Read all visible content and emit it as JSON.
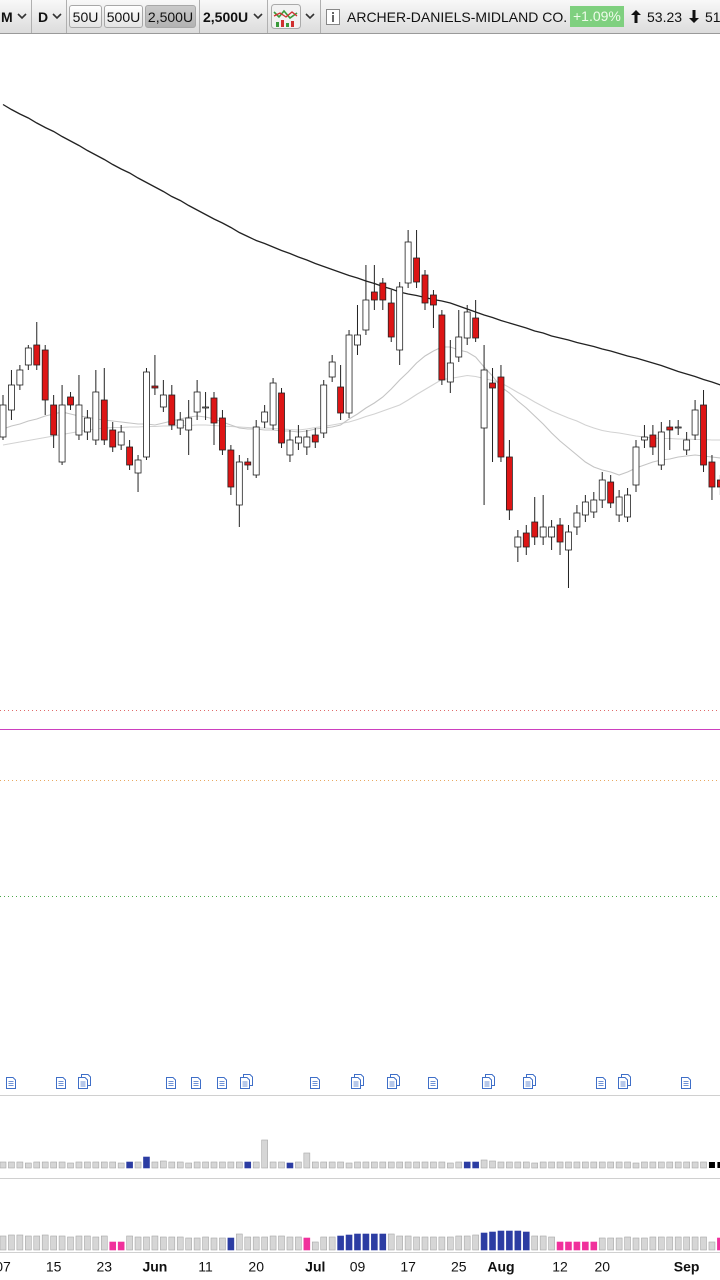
{
  "header": {
    "interval": "M",
    "period": "D",
    "units_buttons": [
      "50U",
      "500U",
      "2,500U"
    ],
    "selected_button": 2,
    "units": "2,500U",
    "title": "ARCHER-DANIELS-MIDLAND CO.",
    "change": "+1.09%",
    "high": "53.23",
    "low": "51"
  },
  "chart_data": [
    {
      "type": "candlestick",
      "categories": [
        "07",
        null,
        null,
        null,
        null,
        null,
        "15",
        null,
        null,
        null,
        null,
        null,
        "23",
        null,
        null,
        null,
        null,
        null,
        "Jun",
        null,
        null,
        null,
        null,
        null,
        "11",
        null,
        null,
        null,
        null,
        null,
        "20",
        null,
        null,
        null,
        null,
        null,
        null,
        "Jul",
        null,
        null,
        null,
        null,
        "09",
        null,
        null,
        null,
        null,
        null,
        "17",
        null,
        null,
        null,
        null,
        null,
        "25",
        null,
        null,
        null,
        null,
        "Aug",
        null,
        null,
        null,
        null,
        null,
        null,
        "12",
        null,
        null,
        null,
        null,
        "20",
        null,
        null,
        null,
        null,
        null,
        null,
        null,
        null,
        null,
        "Sep",
        null,
        null,
        null,
        null
      ],
      "open": [
        51.26,
        51.8,
        52.3,
        52.7,
        53.1,
        53.0,
        51.9,
        50.76,
        52.06,
        51.3,
        51.36,
        51.2,
        52.0,
        51.4,
        51.1,
        51.06,
        50.54,
        50.86,
        52.28,
        51.86,
        52.1,
        51.44,
        51.4,
        51.76,
        51.84,
        52.04,
        51.64,
        51.0,
        49.9,
        50.76,
        50.5,
        51.56,
        51.5,
        52.14,
        50.9,
        51.14,
        51.06,
        51.3,
        51.34,
        52.46,
        52.26,
        51.74,
        53.1,
        53.4,
        54.16,
        54.34,
        53.94,
        53.0,
        54.34,
        54.84,
        54.5,
        54.1,
        53.7,
        52.36,
        52.86,
        53.24,
        53.64,
        51.44,
        52.34,
        52.46,
        50.86,
        49.06,
        49.34,
        49.56,
        49.26,
        49.26,
        49.5,
        49.0,
        49.46,
        49.7,
        49.76,
        50.0,
        50.36,
        49.7,
        49.66,
        50.3,
        51.2,
        51.3,
        50.7,
        51.46,
        51.44,
        51.0,
        51.3,
        51.9,
        50.76,
        50.4
      ],
      "high": [
        52.1,
        52.6,
        52.7,
        53.1,
        53.56,
        53.1,
        52.1,
        52.3,
        52.16,
        52.5,
        51.8,
        52.6,
        52.64,
        51.56,
        51.5,
        51.2,
        50.9,
        52.64,
        52.9,
        52.4,
        52.3,
        51.76,
        52.0,
        52.4,
        52.16,
        52.16,
        51.8,
        51.1,
        50.9,
        50.84,
        51.6,
        51.9,
        52.44,
        52.24,
        51.4,
        51.5,
        51.4,
        51.44,
        52.4,
        52.9,
        52.7,
        53.4,
        53.9,
        54.7,
        54.7,
        54.44,
        54.2,
        54.36,
        55.4,
        55.4,
        54.6,
        54.2,
        53.8,
        53.2,
        53.8,
        53.9,
        54.0,
        53.1,
        52.64,
        52.7,
        51.2,
        49.4,
        49.5,
        50.06,
        50.1,
        49.6,
        49.64,
        49.5,
        49.9,
        50.1,
        50.16,
        50.56,
        50.5,
        50.2,
        50.24,
        51.2,
        51.5,
        51.5,
        51.56,
        51.6,
        51.6,
        51.36,
        52.0,
        52.2,
        50.9,
        50.5
      ],
      "low": [
        51.2,
        51.6,
        52.2,
        52.6,
        52.6,
        51.7,
        51.04,
        50.7,
        51.8,
        51.2,
        51.2,
        51.1,
        51.1,
        50.96,
        51.0,
        50.6,
        50.16,
        50.8,
        52.1,
        51.76,
        51.4,
        51.3,
        50.9,
        51.6,
        51.6,
        51.1,
        50.9,
        50.1,
        49.46,
        50.6,
        50.44,
        51.44,
        51.4,
        51.04,
        50.76,
        51.0,
        50.9,
        51.04,
        51.24,
        52.36,
        51.6,
        51.64,
        52.9,
        53.3,
        53.8,
        53.8,
        53.16,
        52.7,
        54.24,
        54.24,
        53.8,
        53.44,
        52.3,
        52.14,
        52.76,
        53.1,
        53.16,
        49.9,
        50.76,
        50.76,
        49.6,
        48.76,
        48.9,
        49.1,
        49.1,
        49.0,
        48.9,
        48.24,
        49.3,
        49.56,
        49.64,
        49.84,
        49.84,
        49.56,
        49.56,
        50.16,
        51.04,
        50.9,
        50.6,
        51.0,
        51.3,
        50.9,
        51.2,
        50.56,
        50.0,
        50.1
      ],
      "close": [
        51.9,
        52.3,
        52.6,
        53.04,
        52.7,
        52.0,
        51.3,
        51.9,
        51.9,
        51.9,
        51.64,
        52.16,
        51.2,
        51.06,
        51.36,
        50.7,
        50.8,
        52.56,
        52.24,
        52.1,
        51.5,
        51.6,
        51.64,
        52.16,
        51.86,
        51.54,
        51.0,
        50.26,
        50.76,
        50.7,
        51.46,
        51.76,
        52.34,
        51.14,
        51.2,
        51.26,
        51.26,
        51.16,
        52.3,
        52.76,
        51.74,
        53.3,
        53.3,
        54.0,
        54.0,
        54.0,
        53.26,
        54.26,
        55.16,
        54.36,
        53.94,
        53.9,
        52.4,
        52.74,
        53.26,
        53.76,
        53.24,
        52.6,
        52.24,
        50.86,
        49.8,
        49.26,
        49.06,
        49.26,
        49.46,
        49.46,
        49.16,
        49.36,
        49.74,
        49.96,
        50.0,
        50.4,
        49.94,
        50.06,
        50.1,
        51.06,
        51.26,
        51.06,
        51.36,
        51.4,
        51.46,
        51.2,
        51.8,
        50.7,
        50.26,
        50.26
      ],
      "up_color": "#ffffff",
      "down_color": "#dd1515",
      "ylim": [
        38.6,
        60
      ],
      "lines": [
        {
          "color": "#222222",
          "values": [
            57.91,
            57.81,
            57.72,
            57.64,
            57.54,
            57.45,
            57.37,
            57.27,
            57.18,
            57.09,
            56.99,
            56.9,
            56.81,
            56.71,
            56.62,
            56.54,
            56.44,
            56.35,
            56.26,
            56.17,
            56.07,
            55.99,
            55.89,
            55.8,
            55.71,
            55.62,
            55.54,
            55.45,
            55.35,
            55.27,
            55.19,
            55.13,
            55.06,
            54.99,
            54.93,
            54.86,
            54.8,
            54.73,
            54.67,
            54.61,
            54.55,
            54.49,
            54.44,
            54.38,
            54.33,
            54.27,
            54.22,
            54.16,
            54.12,
            54.09,
            54.05,
            54.01,
            53.98,
            53.94,
            53.88,
            53.82,
            53.76,
            53.7,
            53.65,
            53.59,
            53.54,
            53.49,
            53.44,
            53.38,
            53.34,
            53.28,
            53.24,
            53.2,
            53.15,
            53.11,
            53.07,
            53.02,
            52.98,
            52.93,
            52.88,
            52.84,
            52.79,
            52.74,
            52.69,
            52.63,
            52.57,
            52.52,
            52.47,
            52.41,
            52.36,
            52.3
          ]
        },
        {
          "color": "#c4c4c4",
          "values": [
            51.42,
            51.48,
            51.52,
            51.58,
            51.62,
            51.68,
            51.72,
            51.76,
            51.72,
            51.68,
            51.66,
            51.62,
            51.6,
            51.58,
            51.56,
            51.54,
            51.52,
            51.52,
            51.5,
            51.54,
            51.58,
            51.62,
            51.66,
            51.68,
            51.66,
            51.62,
            51.56,
            51.5,
            51.44,
            51.42,
            51.42,
            51.4,
            51.4,
            51.38,
            51.38,
            51.36,
            51.38,
            51.42,
            51.44,
            51.46,
            51.5,
            51.62,
            51.72,
            51.84,
            51.94,
            52.06,
            52.22,
            52.4,
            52.56,
            52.74,
            52.88,
            52.98,
            53.06,
            53.06,
            53.0,
            52.96,
            52.86,
            52.66,
            52.48,
            52.26,
            52.14,
            51.98,
            51.84,
            51.68,
            51.52,
            51.34,
            51.18,
            51.04,
            50.9,
            50.76,
            50.66,
            50.6,
            50.56,
            50.5,
            50.56,
            50.64,
            50.7,
            50.76,
            50.8,
            50.82,
            50.86,
            50.88,
            50.9,
            50.88,
            50.86,
            50.84
          ]
        },
        {
          "color": "#d2d2d2",
          "values": [
            51.1,
            51.13,
            51.16,
            51.19,
            51.22,
            51.25,
            51.28,
            51.31,
            51.34,
            51.37,
            51.4,
            51.42,
            51.44,
            51.45,
            51.45,
            51.46,
            51.46,
            51.47,
            51.47,
            51.48,
            51.48,
            51.49,
            51.49,
            51.5,
            51.5,
            51.49,
            51.48,
            51.47,
            51.46,
            51.45,
            51.44,
            51.44,
            51.43,
            51.42,
            51.41,
            51.4,
            51.42,
            51.45,
            51.47,
            51.5,
            51.53,
            51.56,
            51.61,
            51.67,
            51.72,
            51.78,
            51.84,
            51.9,
            52.0,
            52.11,
            52.21,
            52.31,
            52.41,
            52.43,
            52.46,
            52.49,
            52.47,
            52.43,
            52.39,
            52.34,
            52.25,
            52.15,
            52.06,
            51.96,
            51.87,
            51.78,
            51.71,
            51.64,
            51.58,
            51.5,
            51.44,
            51.39,
            51.36,
            51.34,
            51.31,
            51.28,
            51.26,
            51.24,
            51.23,
            51.23,
            51.22,
            51.22,
            51.21,
            51.21,
            51.2,
            51.2
          ]
        }
      ],
      "levels": [
        {
          "value": 45.8,
          "color": "#e06a6a",
          "dash": "dotted"
        },
        {
          "value": 45.42,
          "color": "#cc3fbf",
          "dash": "solid"
        },
        {
          "value": 44.4,
          "color": "#e8a860",
          "dash": "dotted"
        },
        {
          "value": 42.08,
          "color": "#4aa84a",
          "dash": "dotted"
        }
      ]
    },
    {
      "type": "bar",
      "ylim": [
        0,
        72
      ],
      "values": [
        6,
        6,
        6,
        5,
        6,
        6,
        6,
        6,
        5,
        6,
        6,
        6,
        6,
        6,
        5,
        6,
        6,
        11,
        6,
        7,
        6,
        6,
        5,
        6,
        6,
        6,
        6,
        6,
        6,
        6,
        6,
        28,
        6,
        6,
        5,
        6,
        15,
        6,
        6,
        6,
        6,
        5,
        6,
        6,
        6,
        6,
        6,
        6,
        6,
        6,
        6,
        6,
        6,
        5,
        6,
        6,
        6,
        8,
        7,
        6,
        6,
        6,
        6,
        5,
        6,
        6,
        6,
        6,
        6,
        6,
        6,
        6,
        6,
        6,
        6,
        5,
        6,
        6,
        6,
        6,
        6,
        6,
        6,
        6,
        6,
        6
      ],
      "bar_colors": "gggggggggggggggbgbgggggggggggbggggbggggggggggggggggggggbbggggggggggggggggggggggggggg",
      "palette": {
        "g": "#d6d6d6",
        "b": "#2c3da3",
        "m": "#f0309c"
      }
    },
    {
      "type": "bar",
      "ylim": [
        0,
        70
      ],
      "values": [
        14,
        15,
        15,
        14,
        14,
        15,
        14,
        14,
        13,
        14,
        14,
        13,
        14,
        8,
        8,
        14,
        13,
        13,
        14,
        13,
        13,
        13,
        12,
        12,
        13,
        12,
        12,
        12,
        16,
        13,
        13,
        13,
        14,
        14,
        13,
        13,
        12,
        8,
        13,
        13,
        14,
        15,
        16,
        16,
        16,
        16,
        16,
        14,
        14,
        13,
        13,
        13,
        13,
        13,
        14,
        14,
        15,
        17,
        18,
        19,
        19,
        19,
        18,
        14,
        14,
        13,
        8,
        8,
        8,
        8,
        8,
        12,
        12,
        12,
        13,
        12,
        12,
        13,
        13,
        13,
        13,
        13,
        13,
        13,
        8,
        12
      ],
      "bar_colors": "gggggggggggggmmggggggggggggbggggggggmgggbbbbbbgggggggggggbbbbbbgggmmmmmggggggggggggggmg",
      "palette": {
        "g": "#d6d6d6",
        "b": "#2c3da3",
        "m": "#f0309c"
      }
    }
  ]
}
